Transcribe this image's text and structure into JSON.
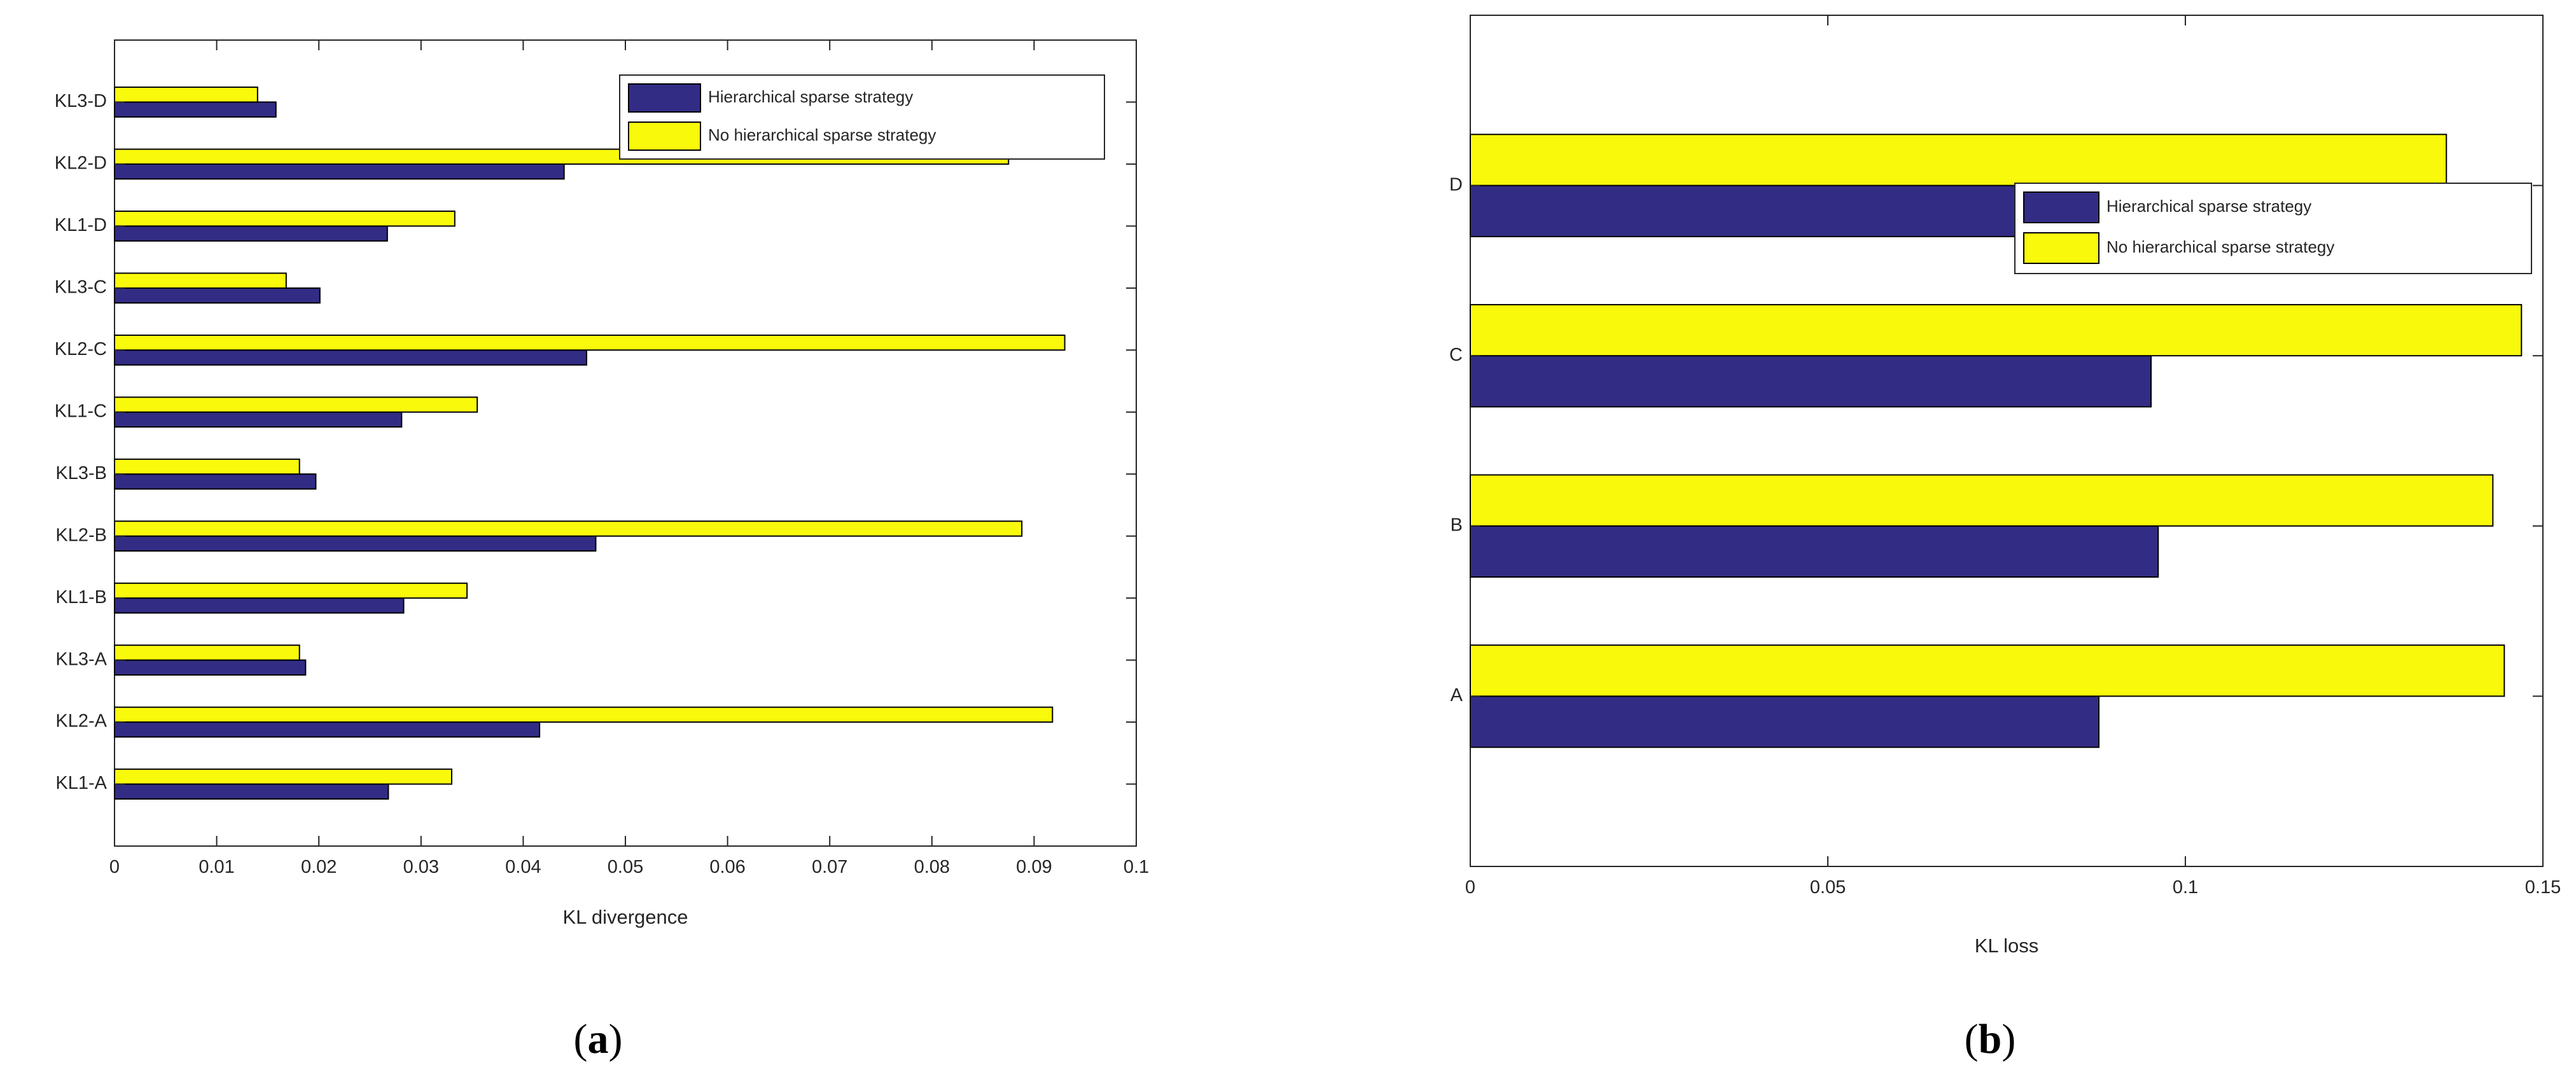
{
  "chart_data": [
    {
      "panel": "(a)",
      "type": "bar",
      "orientation": "horizontal",
      "xlabel": "KL divergence",
      "ylabel": "",
      "xlim": [
        0,
        0.1
      ],
      "xticks": [
        "0",
        "0.01",
        "0.02",
        "0.03",
        "0.04",
        "0.05",
        "0.06",
        "0.07",
        "0.08",
        "0.09",
        "0.1"
      ],
      "categories": [
        "KL1-A",
        "KL2-A",
        "KL3-A",
        "KL1-B",
        "KL2-B",
        "KL3-B",
        "KL1-C",
        "KL2-C",
        "KL3-C",
        "KL1-D",
        "KL2-D",
        "KL3-D"
      ],
      "series": [
        {
          "name": "Hierarchical sparse strategy",
          "color": "#332c85",
          "values": [
            0.0268,
            0.0416,
            0.0187,
            0.0283,
            0.0471,
            0.0197,
            0.0281,
            0.0462,
            0.0201,
            0.0267,
            0.044,
            0.0158
          ]
        },
        {
          "name": "No hierarchical sparse strategy",
          "color": "#f9f90c",
          "values": [
            0.033,
            0.0918,
            0.0181,
            0.0345,
            0.0888,
            0.0181,
            0.0355,
            0.093,
            0.0168,
            0.0333,
            0.0875,
            0.014
          ]
        }
      ],
      "legend": "top-right",
      "grid": false
    },
    {
      "panel": "(b)",
      "type": "bar",
      "orientation": "horizontal",
      "xlabel": "KL loss",
      "ylabel": "",
      "xlim": [
        0,
        0.15
      ],
      "xticks": [
        "0",
        "0.05",
        "0.1",
        "0.15"
      ],
      "categories": [
        "A",
        "B",
        "C",
        "D"
      ],
      "series": [
        {
          "name": "Hierarchical sparse strategy",
          "color": "#332c85",
          "values": [
            0.0879,
            0.0962,
            0.0952,
            0.0873
          ]
        },
        {
          "name": "No hierarchical sparse strategy",
          "color": "#f9f90c",
          "values": [
            0.1446,
            0.143,
            0.147,
            0.1365
          ]
        }
      ],
      "legend": "top-right",
      "grid": false
    }
  ],
  "captions": {
    "a": {
      "open": "(",
      "letter": "a",
      "close": ")"
    },
    "b": {
      "open": "(",
      "letter": "b",
      "close": ")"
    }
  }
}
